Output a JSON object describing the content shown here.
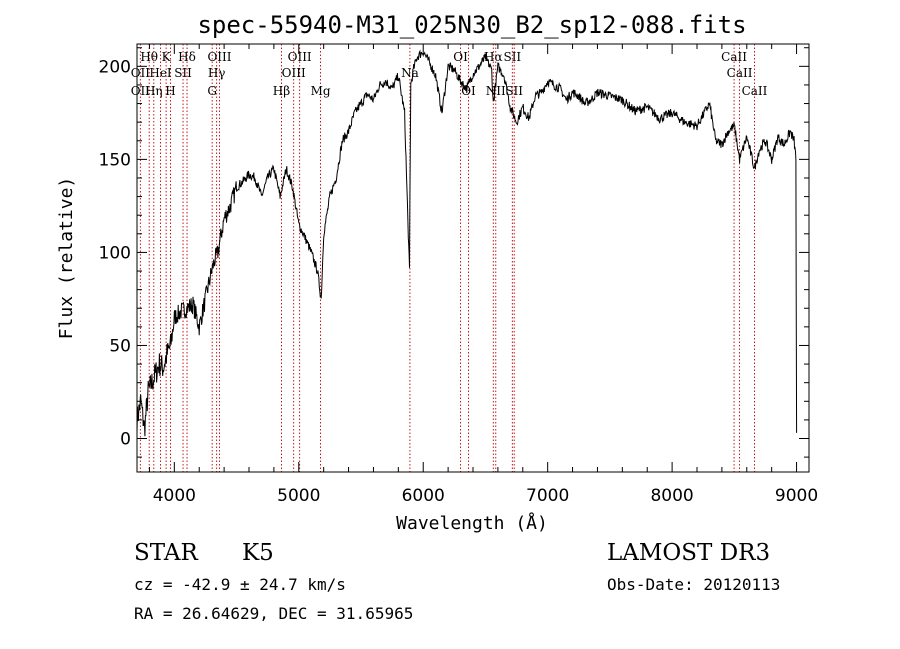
{
  "chart_data": {
    "type": "line",
    "title": "spec-55940-M31_025N30_B2_sp12-088.fits",
    "xlabel": "Wavelength (Å)",
    "ylabel": "Flux (relative)",
    "xlim": [
      3700,
      9100
    ],
    "ylim": [
      -18,
      212
    ],
    "xticks": [
      4000,
      5000,
      6000,
      7000,
      8000,
      9000
    ],
    "yticks": [
      0,
      50,
      100,
      150,
      200
    ],
    "series": [
      {
        "name": "flux",
        "color": "#000000",
        "x": [
          3700,
          3730,
          3760,
          3790,
          3820,
          3850,
          3880,
          3910,
          3940,
          3970,
          4000,
          4050,
          4100,
          4150,
          4200,
          4250,
          4300,
          4320,
          4350,
          4400,
          4450,
          4500,
          4550,
          4600,
          4650,
          4700,
          4750,
          4800,
          4850,
          4900,
          4950,
          5000,
          5050,
          5100,
          5150,
          5180,
          5200,
          5250,
          5300,
          5350,
          5400,
          5450,
          5500,
          5550,
          5600,
          5650,
          5700,
          5750,
          5800,
          5850,
          5880,
          5890,
          5895,
          5900,
          5920,
          5950,
          6000,
          6050,
          6100,
          6150,
          6200,
          6250,
          6300,
          6350,
          6400,
          6450,
          6500,
          6550,
          6563,
          6600,
          6650,
          6700,
          6750,
          6800,
          6850,
          6900,
          6950,
          7000,
          7050,
          7100,
          7150,
          7200,
          7250,
          7300,
          7350,
          7400,
          7500,
          7600,
          7700,
          7800,
          7900,
          8000,
          8100,
          8200,
          8300,
          8350,
          8400,
          8450,
          8500,
          8542,
          8600,
          8662,
          8700,
          8750,
          8800,
          8850,
          8900,
          8950,
          8980,
          8995,
          9000
        ],
        "y": [
          10,
          20,
          5,
          25,
          30,
          35,
          40,
          38,
          45,
          50,
          65,
          68,
          70,
          72,
          60,
          75,
          90,
          95,
          100,
          118,
          125,
          135,
          138,
          142,
          140,
          130,
          140,
          145,
          130,
          145,
          135,
          115,
          108,
          100,
          90,
          75,
          110,
          130,
          140,
          160,
          165,
          175,
          180,
          185,
          182,
          190,
          192,
          188,
          195,
          175,
          110,
          90,
          150,
          190,
          198,
          205,
          208,
          202,
          195,
          175,
          200,
          198,
          192,
          188,
          196,
          200,
          205,
          198,
          180,
          200,
          195,
          178,
          170,
          178,
          172,
          184,
          186,
          192,
          190,
          188,
          182,
          186,
          184,
          180,
          182,
          186,
          184,
          182,
          176,
          178,
          172,
          175,
          170,
          168,
          180,
          160,
          158,
          165,
          168,
          150,
          162,
          145,
          155,
          160,
          150,
          162,
          158,
          165,
          160,
          150,
          3
        ]
      }
    ],
    "line_markers": [
      {
        "label": "Hθ",
        "x": 3798,
        "row": 1
      },
      {
        "label": "K",
        "x": 3934,
        "row": 1
      },
      {
        "label": "Hδ",
        "x": 4102,
        "row": 1
      },
      {
        "label": "OIII",
        "x": 4363,
        "row": 1
      },
      {
        "label": "OIII",
        "x": 5007,
        "row": 1
      },
      {
        "label": "OI",
        "x": 6300,
        "row": 1
      },
      {
        "label": "Hα",
        "x": 6563,
        "row": 1
      },
      {
        "label": "SII",
        "x": 6716,
        "row": 1
      },
      {
        "label": "CaII",
        "x": 8498,
        "row": 1
      },
      {
        "label": "OII",
        "x": 3727,
        "row": 2
      },
      {
        "label": "HeI",
        "x": 3889,
        "row": 2
      },
      {
        "label": "SII",
        "x": 4070,
        "row": 2
      },
      {
        "label": "Hγ",
        "x": 4340,
        "row": 2
      },
      {
        "label": "OIII",
        "x": 4959,
        "row": 2
      },
      {
        "label": "Na",
        "x": 5893,
        "row": 2
      },
      {
        "label": "CaII",
        "x": 8542,
        "row": 2
      },
      {
        "label": "OII",
        "x": 3727,
        "row": 3
      },
      {
        "label": "Hη",
        "x": 3835,
        "row": 3
      },
      {
        "label": "H",
        "x": 3969,
        "row": 3
      },
      {
        "label": "G",
        "x": 4304,
        "row": 3
      },
      {
        "label": "Hβ",
        "x": 4861,
        "row": 3
      },
      {
        "label": "Mg",
        "x": 5175,
        "row": 3
      },
      {
        "label": "OI",
        "x": 6364,
        "row": 3
      },
      {
        "label": "NII",
        "x": 6583,
        "row": 3
      },
      {
        "label": "SII",
        "x": 6731,
        "row": 3
      },
      {
        "label": "CaII",
        "x": 8662,
        "row": 3
      }
    ],
    "marker_color": "#c00000"
  },
  "info": {
    "object_class": "STAR",
    "subclass": "K5",
    "survey": "LAMOST DR3",
    "cz": "cz = -42.9 ± 24.7 km/s",
    "obs_date": "Obs-Date: 20120113",
    "coords": "RA =  26.64629, DEC =  31.65965"
  }
}
